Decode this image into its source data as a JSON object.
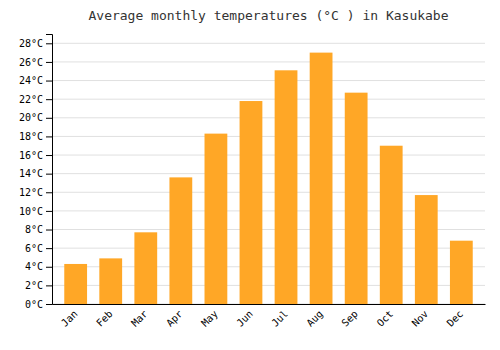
{
  "chart_data": {
    "type": "bar",
    "title": "Average monthly temperatures (°C ) in Kasukabe",
    "categories": [
      "Jan",
      "Feb",
      "Mar",
      "Apr",
      "May",
      "Jun",
      "Jul",
      "Aug",
      "Sep",
      "Oct",
      "Nov",
      "Dec"
    ],
    "values": [
      4.3,
      4.9,
      7.7,
      13.6,
      18.3,
      21.8,
      25.1,
      27.0,
      22.7,
      17.0,
      11.7,
      6.8
    ],
    "color": "#FFA726",
    "ylim": [
      0,
      29
    ],
    "yticks": [
      {
        "value": 0,
        "label": "0°C"
      },
      {
        "value": 2,
        "label": "2°C"
      },
      {
        "value": 4,
        "label": "4°C"
      },
      {
        "value": 6,
        "label": "6°C"
      },
      {
        "value": 8,
        "label": "8°C"
      },
      {
        "value": 10,
        "label": "10°C"
      },
      {
        "value": 12,
        "label": "12°C"
      },
      {
        "value": 14,
        "label": "14°C"
      },
      {
        "value": 16,
        "label": "16°C"
      },
      {
        "value": 18,
        "label": "18°C"
      },
      {
        "value": 20,
        "label": "20°C"
      },
      {
        "value": 22,
        "label": "22°C"
      },
      {
        "value": 24,
        "label": "24°C"
      },
      {
        "value": 26,
        "label": "26°C"
      },
      {
        "value": 28,
        "label": "28°C"
      }
    ],
    "grid": true
  }
}
